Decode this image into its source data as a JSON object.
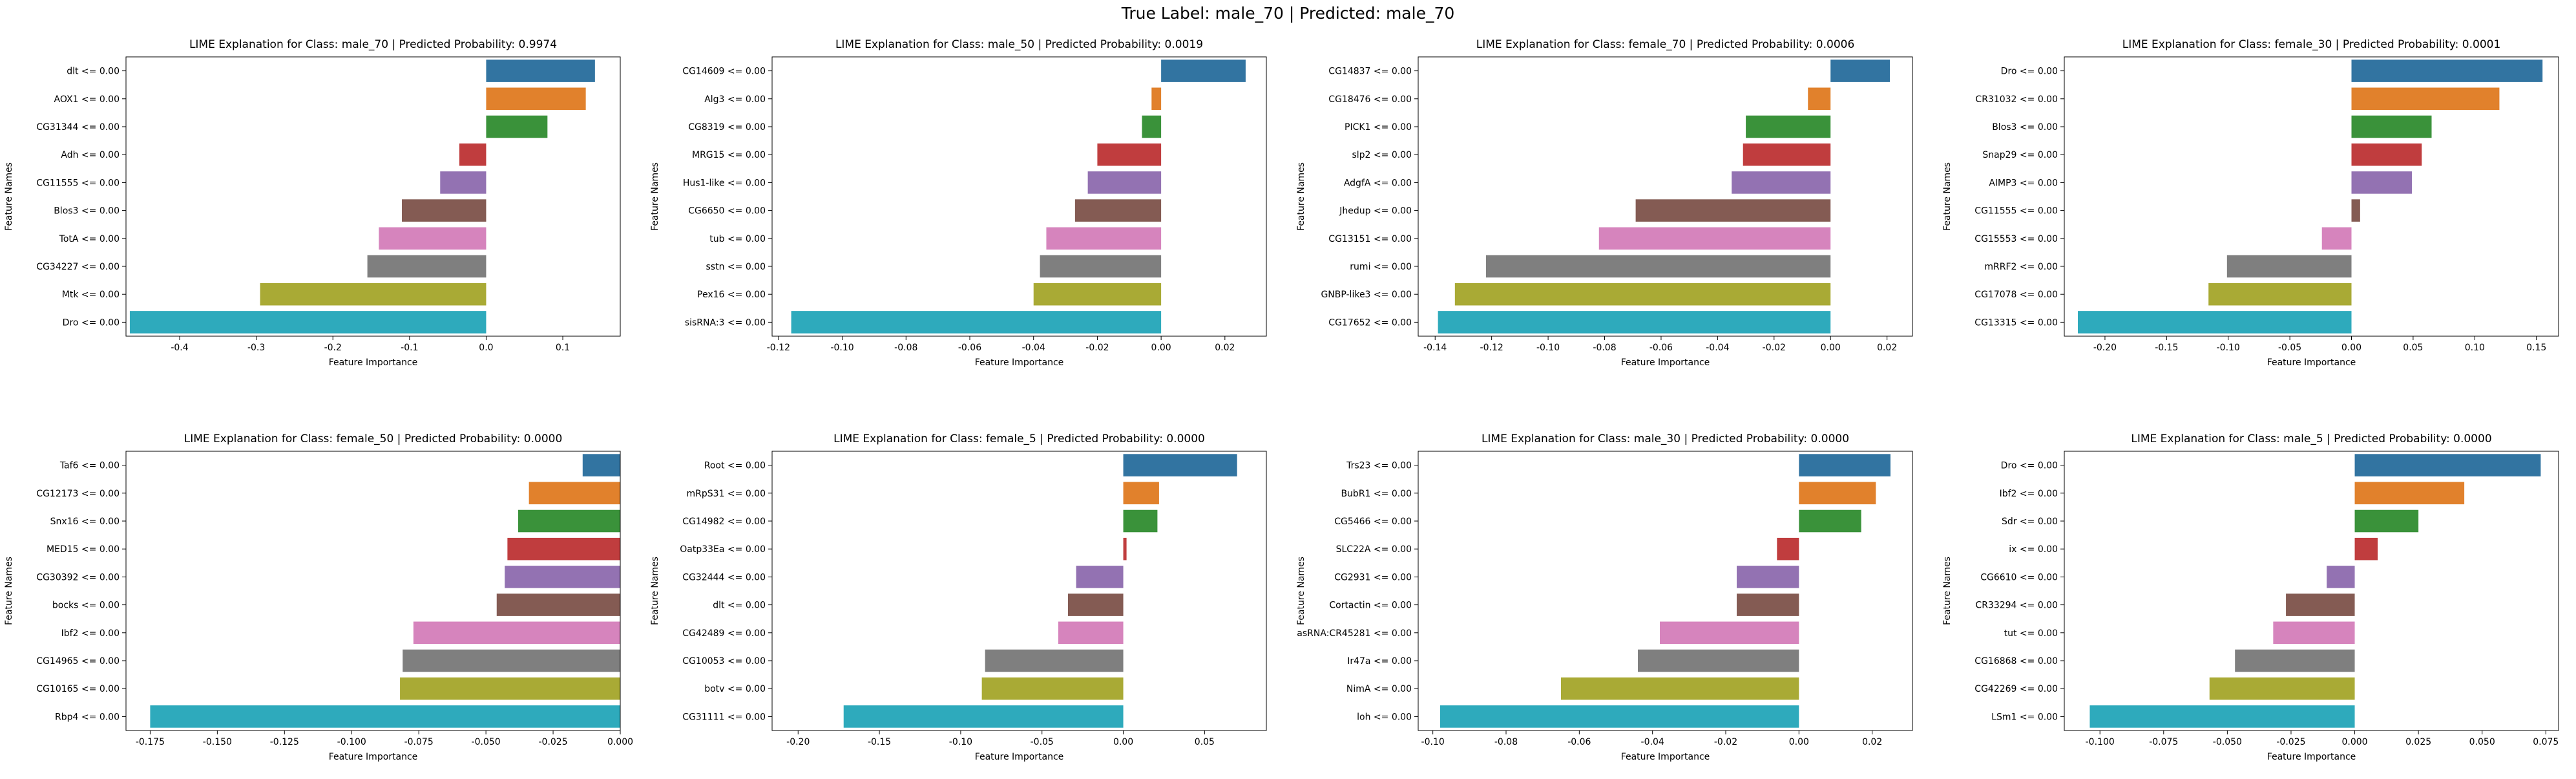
{
  "suptitle": "True Label: male_70 | Predicted: male_70",
  "chart_data": [
    {
      "type": "bar",
      "orientation": "horizontal",
      "title": "LIME Explanation for Class: male_70 | Predicted Probability: 0.9974",
      "xlabel": "Feature Importance",
      "ylabel": "Feature Names",
      "xlim": [
        -0.47,
        0.175
      ],
      "xticks": [
        "-0.4",
        "-0.3",
        "-0.2",
        "-0.1",
        "0.0",
        "0.1"
      ],
      "xtick_values": [
        -0.4,
        -0.3,
        -0.2,
        -0.1,
        0.0,
        0.1
      ],
      "categories": [
        "dlt <= 0.00",
        "AOX1 <= 0.00",
        "CG31344 <= 0.00",
        "Adh <= 0.00",
        "CG11555 <= 0.00",
        "Blos3 <= 0.00",
        "TotA <= 0.00",
        "CG34227 <= 0.00",
        "Mtk <= 0.00",
        "Dro <= 0.00"
      ],
      "values": [
        0.142,
        0.13,
        0.08,
        -0.035,
        -0.06,
        -0.11,
        -0.14,
        -0.155,
        -0.295,
        -0.465
      ]
    },
    {
      "type": "bar",
      "orientation": "horizontal",
      "title": "LIME Explanation for Class: male_50 | Predicted Probability: 0.0019",
      "xlabel": "Feature Importance",
      "ylabel": "Feature Names",
      "xlim": [
        -0.122,
        0.033
      ],
      "xticks": [
        "-0.12",
        "-0.10",
        "-0.08",
        "-0.06",
        "-0.04",
        "-0.02",
        "0.00",
        "0.02"
      ],
      "xtick_values": [
        -0.12,
        -0.1,
        -0.08,
        -0.06,
        -0.04,
        -0.02,
        0.0,
        0.02
      ],
      "categories": [
        "CG14609 <= 0.00",
        "Alg3 <= 0.00",
        "CG8319 <= 0.00",
        "MRG15 <= 0.00",
        "Hus1-like <= 0.00",
        "CG6650 <= 0.00",
        "tub <= 0.00",
        "sstn <= 0.00",
        "Pex16 <= 0.00",
        "sisRNA:3 <= 0.00"
      ],
      "values": [
        0.0265,
        -0.003,
        -0.006,
        -0.02,
        -0.023,
        -0.027,
        -0.036,
        -0.038,
        -0.04,
        -0.116
      ]
    },
    {
      "type": "bar",
      "orientation": "horizontal",
      "title": "LIME Explanation for Class: female_70 | Predicted Probability: 0.0006",
      "xlabel": "Feature Importance",
      "ylabel": "Feature Names",
      "xlim": [
        -0.146,
        0.029
      ],
      "xticks": [
        "-0.14",
        "-0.12",
        "-0.10",
        "-0.08",
        "-0.06",
        "-0.04",
        "-0.02",
        "0.00",
        "0.02"
      ],
      "xtick_values": [
        -0.14,
        -0.12,
        -0.1,
        -0.08,
        -0.06,
        -0.04,
        -0.02,
        0.0,
        0.02
      ],
      "categories": [
        "CG14837 <= 0.00",
        "CG18476 <= 0.00",
        "PICK1 <= 0.00",
        "slp2 <= 0.00",
        "AdgfA <= 0.00",
        "Jhedup <= 0.00",
        "CG13151 <= 0.00",
        "rumi <= 0.00",
        "GNBP-like3 <= 0.00",
        "CG17652 <= 0.00"
      ],
      "values": [
        0.021,
        -0.008,
        -0.03,
        -0.031,
        -0.035,
        -0.069,
        -0.082,
        -0.122,
        -0.133,
        -0.139
      ]
    },
    {
      "type": "bar",
      "orientation": "horizontal",
      "title": "LIME Explanation for Class: female_30 | Predicted Probability: 0.0001",
      "xlabel": "Feature Importance",
      "ylabel": "Feature Names",
      "xlim": [
        -0.233,
        0.168
      ],
      "xticks": [
        "-0.20",
        "-0.15",
        "-0.10",
        "-0.05",
        "0.00",
        "0.05",
        "0.10",
        "0.15"
      ],
      "xtick_values": [
        -0.2,
        -0.15,
        -0.1,
        -0.05,
        0.0,
        0.05,
        0.1,
        0.15
      ],
      "categories": [
        "Dro <= 0.00",
        "CR31032 <= 0.00",
        "Blos3 <= 0.00",
        "Snap29 <= 0.00",
        "AIMP3 <= 0.00",
        "CG11555 <= 0.00",
        "CG15553 <= 0.00",
        "mRRF2 <= 0.00",
        "CG17078 <= 0.00",
        "CG13315 <= 0.00"
      ],
      "values": [
        0.155,
        0.12,
        0.065,
        0.057,
        0.049,
        0.007,
        -0.024,
        -0.101,
        -0.116,
        -0.222
      ]
    },
    {
      "type": "bar",
      "orientation": "horizontal",
      "title": "LIME Explanation for Class: female_50 | Predicted Probability: 0.0000",
      "xlabel": "Feature Importance",
      "ylabel": "Feature Names",
      "xlim": [
        -0.184,
        0.0
      ],
      "xticks": [
        "-0.175",
        "-0.150",
        "-0.125",
        "-0.100",
        "-0.075",
        "-0.050",
        "-0.025",
        "0.000"
      ],
      "xtick_values": [
        -0.175,
        -0.15,
        -0.125,
        -0.1,
        -0.075,
        -0.05,
        -0.025,
        0.0
      ],
      "categories": [
        "Taf6 <= 0.00",
        "CG12173 <= 0.00",
        "Snx16 <= 0.00",
        "MED15 <= 0.00",
        "CG30392 <= 0.00",
        "bocks <= 0.00",
        "Ibf2 <= 0.00",
        "CG14965 <= 0.00",
        "CG10165 <= 0.00",
        "Rbp4 <= 0.00"
      ],
      "values": [
        -0.014,
        -0.034,
        -0.038,
        -0.042,
        -0.043,
        -0.046,
        -0.077,
        -0.081,
        -0.082,
        -0.175
      ]
    },
    {
      "type": "bar",
      "orientation": "horizontal",
      "title": "LIME Explanation for Class: female_5 | Predicted Probability: 0.0000",
      "xlabel": "Feature Importance",
      "ylabel": "Feature Names",
      "xlim": [
        -0.216,
        0.088
      ],
      "xticks": [
        "-0.20",
        "-0.15",
        "-0.10",
        "-0.05",
        "0.00",
        "0.05"
      ],
      "xtick_values": [
        -0.2,
        -0.15,
        -0.1,
        -0.05,
        0.0,
        0.05
      ],
      "categories": [
        "Root <= 0.00",
        "mRpS31 <= 0.00",
        "CG14982 <= 0.00",
        "Oatp33Ea <= 0.00",
        "CG32444 <= 0.00",
        "dlt <= 0.00",
        "CG42489 <= 0.00",
        "CG10053 <= 0.00",
        "botv <= 0.00",
        "CG31111 <= 0.00"
      ],
      "values": [
        0.07,
        0.022,
        0.021,
        0.002,
        -0.029,
        -0.034,
        -0.04,
        -0.085,
        -0.087,
        -0.172
      ]
    },
    {
      "type": "bar",
      "orientation": "horizontal",
      "title": "LIME Explanation for Class: male_30 | Predicted Probability: 0.0000",
      "xlabel": "Feature Importance",
      "ylabel": "Feature Names",
      "xlim": [
        -0.104,
        0.031
      ],
      "xticks": [
        "-0.10",
        "-0.08",
        "-0.06",
        "-0.04",
        "-0.02",
        "0.00",
        "0.02"
      ],
      "xtick_values": [
        -0.1,
        -0.08,
        -0.06,
        -0.04,
        -0.02,
        0.0,
        0.02
      ],
      "categories": [
        "Trs23 <= 0.00",
        "BubR1 <= 0.00",
        "CG5466 <= 0.00",
        "SLC22A <= 0.00",
        "CG2931 <= 0.00",
        "Cortactin <= 0.00",
        "asRNA:CR45281 <= 0.00",
        "Ir47a <= 0.00",
        "NimA <= 0.00",
        "loh <= 0.00"
      ],
      "values": [
        0.025,
        0.021,
        0.017,
        -0.006,
        -0.017,
        -0.017,
        -0.038,
        -0.044,
        -0.065,
        -0.098
      ]
    },
    {
      "type": "bar",
      "orientation": "horizontal",
      "title": "LIME Explanation for Class: male_5 | Predicted Probability: 0.0000",
      "xlabel": "Feature Importance",
      "ylabel": "Feature Names",
      "xlim": [
        -0.114,
        0.08
      ],
      "xticks": [
        "-0.100",
        "-0.075",
        "-0.050",
        "-0.025",
        "0.000",
        "0.025",
        "0.050",
        "0.075"
      ],
      "xtick_values": [
        -0.1,
        -0.075,
        -0.05,
        -0.025,
        0.0,
        0.025,
        0.05,
        0.075
      ],
      "categories": [
        "Dro <= 0.00",
        "Ibf2 <= 0.00",
        "Sdr <= 0.00",
        "ix <= 0.00",
        "CG6610 <= 0.00",
        "CR33294 <= 0.00",
        "tut <= 0.00",
        "CG16868 <= 0.00",
        "CG42269 <= 0.00",
        "LSm1 <= 0.00"
      ],
      "values": [
        0.073,
        0.043,
        0.025,
        0.009,
        -0.011,
        -0.027,
        -0.032,
        -0.047,
        -0.057,
        -0.104
      ]
    }
  ],
  "bar_colors": [
    "#3274a1",
    "#e1812c",
    "#3a923a",
    "#c03d3e",
    "#9372b2",
    "#845b53",
    "#d684bd",
    "#7f7f7f",
    "#a9aa35",
    "#2eaabc"
  ]
}
